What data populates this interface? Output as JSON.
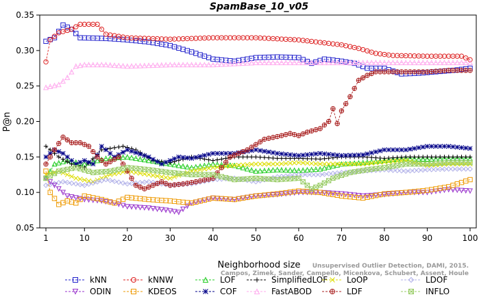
{
  "chart_data": {
    "type": "line",
    "title": "SpamBase_10_v05",
    "xlabel": "Neighborhood size",
    "ylabel": "P@n",
    "xlim": [
      0,
      100
    ],
    "ylim": [
      0.05,
      0.35
    ],
    "xticks": [
      1,
      10,
      20,
      30,
      40,
      50,
      60,
      70,
      80,
      90,
      100
    ],
    "yticks": [
      0.05,
      0.1,
      0.15,
      0.2,
      0.25,
      0.3,
      0.35
    ],
    "ytick_labels": [
      "0.05",
      "0.10",
      "0.15",
      "0.20",
      "0.25",
      "0.30",
      "0.35"
    ],
    "grid": false,
    "legend_position": "bottom",
    "watermark": [
      "Campos, Zimek, Sander, Campello, Micenkova, Schubert, Assent, Houle",
      "Unsupervised Outlier Detection, DAMI, 2015."
    ],
    "series": [
      {
        "name": "kNN",
        "color": "#2222cc",
        "marker": "square",
        "points": [
          [
            1,
            0.313
          ],
          [
            3,
            0.318
          ],
          [
            5,
            0.336
          ],
          [
            7,
            0.33
          ],
          [
            9,
            0.318
          ],
          [
            15,
            0.317
          ],
          [
            20,
            0.315
          ],
          [
            25,
            0.312
          ],
          [
            30,
            0.307
          ],
          [
            35,
            0.298
          ],
          [
            40,
            0.288
          ],
          [
            45,
            0.285
          ],
          [
            50,
            0.29
          ],
          [
            55,
            0.291
          ],
          [
            60,
            0.29
          ],
          [
            63,
            0.282
          ],
          [
            66,
            0.288
          ],
          [
            70,
            0.285
          ],
          [
            73,
            0.282
          ],
          [
            76,
            0.275
          ],
          [
            80,
            0.275
          ],
          [
            84,
            0.267
          ],
          [
            88,
            0.268
          ],
          [
            92,
            0.27
          ],
          [
            96,
            0.272
          ],
          [
            100,
            0.275
          ]
        ]
      },
      {
        "name": "kNNW",
        "color": "#dd2222",
        "marker": "circle",
        "points": [
          [
            1,
            0.284
          ],
          [
            2,
            0.315
          ],
          [
            4,
            0.325
          ],
          [
            7,
            0.33
          ],
          [
            9,
            0.337
          ],
          [
            13,
            0.337
          ],
          [
            15,
            0.323
          ],
          [
            20,
            0.318
          ],
          [
            25,
            0.317
          ],
          [
            30,
            0.316
          ],
          [
            40,
            0.318
          ],
          [
            50,
            0.318
          ],
          [
            60,
            0.315
          ],
          [
            70,
            0.308
          ],
          [
            74,
            0.303
          ],
          [
            78,
            0.296
          ],
          [
            82,
            0.293
          ],
          [
            90,
            0.292
          ],
          [
            98,
            0.292
          ],
          [
            100,
            0.287
          ]
        ]
      },
      {
        "name": "LOF",
        "color": "#22cc22",
        "marker": "triangle-up",
        "points": [
          [
            1,
            0.12
          ],
          [
            3,
            0.14
          ],
          [
            6,
            0.145
          ],
          [
            10,
            0.14
          ],
          [
            15,
            0.148
          ],
          [
            20,
            0.15
          ],
          [
            25,
            0.145
          ],
          [
            30,
            0.14
          ],
          [
            35,
            0.135
          ],
          [
            40,
            0.14
          ],
          [
            45,
            0.138
          ],
          [
            50,
            0.13
          ],
          [
            55,
            0.132
          ],
          [
            60,
            0.131
          ],
          [
            65,
            0.133
          ],
          [
            70,
            0.14
          ],
          [
            75,
            0.142
          ],
          [
            80,
            0.145
          ],
          [
            85,
            0.148
          ],
          [
            90,
            0.147
          ],
          [
            95,
            0.148
          ],
          [
            100,
            0.148
          ]
        ]
      },
      {
        "name": "SimplifiedLOF",
        "color": "#000000",
        "marker": "plus",
        "points": [
          [
            1,
            0.165
          ],
          [
            4,
            0.15
          ],
          [
            7,
            0.14
          ],
          [
            10,
            0.135
          ],
          [
            14,
            0.16
          ],
          [
            19,
            0.165
          ],
          [
            22,
            0.16
          ],
          [
            26,
            0.145
          ],
          [
            30,
            0.142
          ],
          [
            35,
            0.15
          ],
          [
            40,
            0.145
          ],
          [
            45,
            0.15
          ],
          [
            50,
            0.15
          ],
          [
            55,
            0.148
          ],
          [
            60,
            0.148
          ],
          [
            65,
            0.147
          ],
          [
            70,
            0.15
          ],
          [
            75,
            0.15
          ],
          [
            80,
            0.148
          ],
          [
            85,
            0.15
          ],
          [
            90,
            0.15
          ],
          [
            95,
            0.15
          ],
          [
            100,
            0.15
          ]
        ]
      },
      {
        "name": "LoOP",
        "color": "#dddd00",
        "marker": "x",
        "points": [
          [
            1,
            0.125
          ],
          [
            4,
            0.13
          ],
          [
            8,
            0.12
          ],
          [
            12,
            0.115
          ],
          [
            16,
            0.125
          ],
          [
            20,
            0.13
          ],
          [
            25,
            0.125
          ],
          [
            30,
            0.12
          ],
          [
            35,
            0.13
          ],
          [
            40,
            0.135
          ],
          [
            45,
            0.138
          ],
          [
            50,
            0.14
          ],
          [
            55,
            0.14
          ],
          [
            60,
            0.142
          ],
          [
            65,
            0.14
          ],
          [
            70,
            0.14
          ],
          [
            75,
            0.14
          ],
          [
            80,
            0.143
          ],
          [
            85,
            0.145
          ],
          [
            90,
            0.138
          ],
          [
            95,
            0.14
          ],
          [
            100,
            0.14
          ]
        ]
      },
      {
        "name": "LDOF",
        "color": "#b0b0e8",
        "marker": "diamond",
        "points": [
          [
            1,
            0.11
          ],
          [
            5,
            0.115
          ],
          [
            10,
            0.11
          ],
          [
            15,
            0.118
          ],
          [
            20,
            0.112
          ],
          [
            25,
            0.115
          ],
          [
            30,
            0.11
          ],
          [
            35,
            0.112
          ],
          [
            40,
            0.118
          ],
          [
            45,
            0.12
          ],
          [
            50,
            0.115
          ],
          [
            55,
            0.122
          ],
          [
            60,
            0.125
          ],
          [
            65,
            0.125
          ],
          [
            70,
            0.128
          ],
          [
            75,
            0.13
          ],
          [
            80,
            0.132
          ],
          [
            85,
            0.13
          ],
          [
            90,
            0.132
          ],
          [
            95,
            0.133
          ],
          [
            100,
            0.133
          ]
        ]
      },
      {
        "name": "ODIN",
        "color": "#9933cc",
        "marker": "triangle-down",
        "points": [
          [
            1,
            0.12
          ],
          [
            3,
            0.11
          ],
          [
            6,
            0.095
          ],
          [
            10,
            0.09
          ],
          [
            14,
            0.088
          ],
          [
            17,
            0.085
          ],
          [
            20,
            0.08
          ],
          [
            25,
            0.078
          ],
          [
            29,
            0.075
          ],
          [
            32,
            0.072
          ],
          [
            35,
            0.085
          ],
          [
            40,
            0.092
          ],
          [
            45,
            0.09
          ],
          [
            50,
            0.095
          ],
          [
            55,
            0.097
          ],
          [
            60,
            0.1
          ],
          [
            65,
            0.1
          ],
          [
            70,
            0.098
          ],
          [
            75,
            0.095
          ],
          [
            80,
            0.097
          ],
          [
            85,
            0.1
          ],
          [
            90,
            0.1
          ],
          [
            95,
            0.104
          ],
          [
            100,
            0.102
          ]
        ]
      },
      {
        "name": "KDEOS",
        "color": "#ee9900",
        "marker": "square",
        "points": [
          [
            1,
            0.13
          ],
          [
            2,
            0.1
          ],
          [
            4,
            0.083
          ],
          [
            6,
            0.088
          ],
          [
            8,
            0.085
          ],
          [
            10,
            0.095
          ],
          [
            14,
            0.09
          ],
          [
            17,
            0.085
          ],
          [
            20,
            0.093
          ],
          [
            25,
            0.09
          ],
          [
            30,
            0.088
          ],
          [
            35,
            0.085
          ],
          [
            40,
            0.092
          ],
          [
            45,
            0.09
          ],
          [
            50,
            0.095
          ],
          [
            55,
            0.098
          ],
          [
            60,
            0.102
          ],
          [
            65,
            0.1
          ],
          [
            70,
            0.095
          ],
          [
            75,
            0.092
          ],
          [
            80,
            0.098
          ],
          [
            85,
            0.1
          ],
          [
            90,
            0.103
          ],
          [
            95,
            0.108
          ],
          [
            100,
            0.118
          ]
        ]
      },
      {
        "name": "COF",
        "color": "#000088",
        "marker": "asterisk",
        "points": [
          [
            1,
            0.15
          ],
          [
            3,
            0.16
          ],
          [
            5,
            0.155
          ],
          [
            8,
            0.14
          ],
          [
            10,
            0.145
          ],
          [
            12,
            0.14
          ],
          [
            14,
            0.165
          ],
          [
            17,
            0.15
          ],
          [
            20,
            0.16
          ],
          [
            25,
            0.15
          ],
          [
            28,
            0.14
          ],
          [
            32,
            0.15
          ],
          [
            35,
            0.148
          ],
          [
            40,
            0.155
          ],
          [
            45,
            0.155
          ],
          [
            50,
            0.16
          ],
          [
            55,
            0.155
          ],
          [
            60,
            0.152
          ],
          [
            65,
            0.155
          ],
          [
            70,
            0.152
          ],
          [
            75,
            0.153
          ],
          [
            80,
            0.16
          ],
          [
            85,
            0.16
          ],
          [
            90,
            0.165
          ],
          [
            95,
            0.165
          ],
          [
            100,
            0.162
          ]
        ]
      },
      {
        "name": "FastABOD",
        "color": "#ffaaee",
        "marker": "triangle-up",
        "points": [
          [
            1,
            0.248
          ],
          [
            4,
            0.252
          ],
          [
            6,
            0.262
          ],
          [
            8,
            0.278
          ],
          [
            10,
            0.28
          ],
          [
            15,
            0.28
          ],
          [
            20,
            0.278
          ],
          [
            25,
            0.279
          ],
          [
            30,
            0.28
          ],
          [
            40,
            0.28
          ],
          [
            50,
            0.283
          ],
          [
            60,
            0.283
          ],
          [
            70,
            0.283
          ],
          [
            80,
            0.283
          ],
          [
            90,
            0.283
          ],
          [
            100,
            0.283
          ]
        ]
      },
      {
        "name": "LDF",
        "color": "#aa2222",
        "marker": "circle-plus",
        "points": [
          [
            1,
            0.14
          ],
          [
            3,
            0.16
          ],
          [
            5,
            0.178
          ],
          [
            7,
            0.17
          ],
          [
            9,
            0.17
          ],
          [
            11,
            0.165
          ],
          [
            13,
            0.15
          ],
          [
            15,
            0.14
          ],
          [
            18,
            0.15
          ],
          [
            20,
            0.13
          ],
          [
            22,
            0.11
          ],
          [
            24,
            0.105
          ],
          [
            26,
            0.11
          ],
          [
            28,
            0.115
          ],
          [
            30,
            0.11
          ],
          [
            33,
            0.112
          ],
          [
            36,
            0.115
          ],
          [
            40,
            0.12
          ],
          [
            44,
            0.15
          ],
          [
            48,
            0.16
          ],
          [
            52,
            0.175
          ],
          [
            56,
            0.18
          ],
          [
            58,
            0.183
          ],
          [
            60,
            0.18
          ],
          [
            62,
            0.185
          ],
          [
            65,
            0.19
          ],
          [
            67,
            0.2
          ],
          [
            68,
            0.218
          ],
          [
            69,
            0.197
          ],
          [
            70,
            0.215
          ],
          [
            72,
            0.235
          ],
          [
            74,
            0.258
          ],
          [
            76,
            0.265
          ],
          [
            78,
            0.27
          ],
          [
            80,
            0.27
          ],
          [
            85,
            0.27
          ],
          [
            90,
            0.27
          ],
          [
            95,
            0.272
          ],
          [
            100,
            0.272
          ]
        ]
      },
      {
        "name": "INFLO",
        "color": "#99cc66",
        "marker": "square-x",
        "points": [
          [
            1,
            0.12
          ],
          [
            4,
            0.13
          ],
          [
            8,
            0.135
          ],
          [
            12,
            0.128
          ],
          [
            16,
            0.13
          ],
          [
            20,
            0.135
          ],
          [
            25,
            0.132
          ],
          [
            30,
            0.128
          ],
          [
            35,
            0.125
          ],
          [
            40,
            0.125
          ],
          [
            45,
            0.118
          ],
          [
            50,
            0.12
          ],
          [
            55,
            0.118
          ],
          [
            60,
            0.12
          ],
          [
            63,
            0.105
          ],
          [
            65,
            0.11
          ],
          [
            68,
            0.12
          ],
          [
            72,
            0.128
          ],
          [
            76,
            0.132
          ],
          [
            80,
            0.135
          ],
          [
            85,
            0.14
          ],
          [
            90,
            0.14
          ],
          [
            95,
            0.142
          ],
          [
            100,
            0.142
          ]
        ]
      }
    ]
  }
}
